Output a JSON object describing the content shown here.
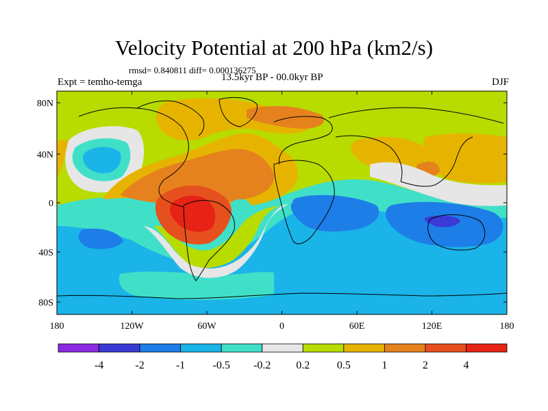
{
  "title": "Velocity Potential at 200 hPa (km2/s)",
  "stats_line": "rmsd= 0.840811 diff= 0.000136275",
  "left_string": "Expt = temho-temga",
  "center_string": "13.5kyr BP - 00.0kyr BP",
  "right_string": "DJF",
  "lat_ticks": [
    "80N",
    "40N",
    "0",
    "40S",
    "80S"
  ],
  "lon_ticks": [
    "180",
    "120W",
    "60W",
    "0",
    "60E",
    "120E",
    "180"
  ],
  "colorbar": {
    "labels": [
      "-4",
      "-2",
      "-1",
      "-0.5",
      "-0.2",
      "0.2",
      "0.5",
      "1",
      "2",
      "4"
    ],
    "colors": [
      "#8a2be2",
      "#3a3ad6",
      "#1e7ee8",
      "#1ab4e8",
      "#40e0c8",
      "#e6e6e6",
      "#b8dc00",
      "#e6b400",
      "#e6821e",
      "#e6501e",
      "#e62314"
    ]
  },
  "map": {
    "projection": "cylindrical-equidistant",
    "lon_range": [
      -180,
      180
    ],
    "lat_range": [
      -90,
      90
    ]
  }
}
